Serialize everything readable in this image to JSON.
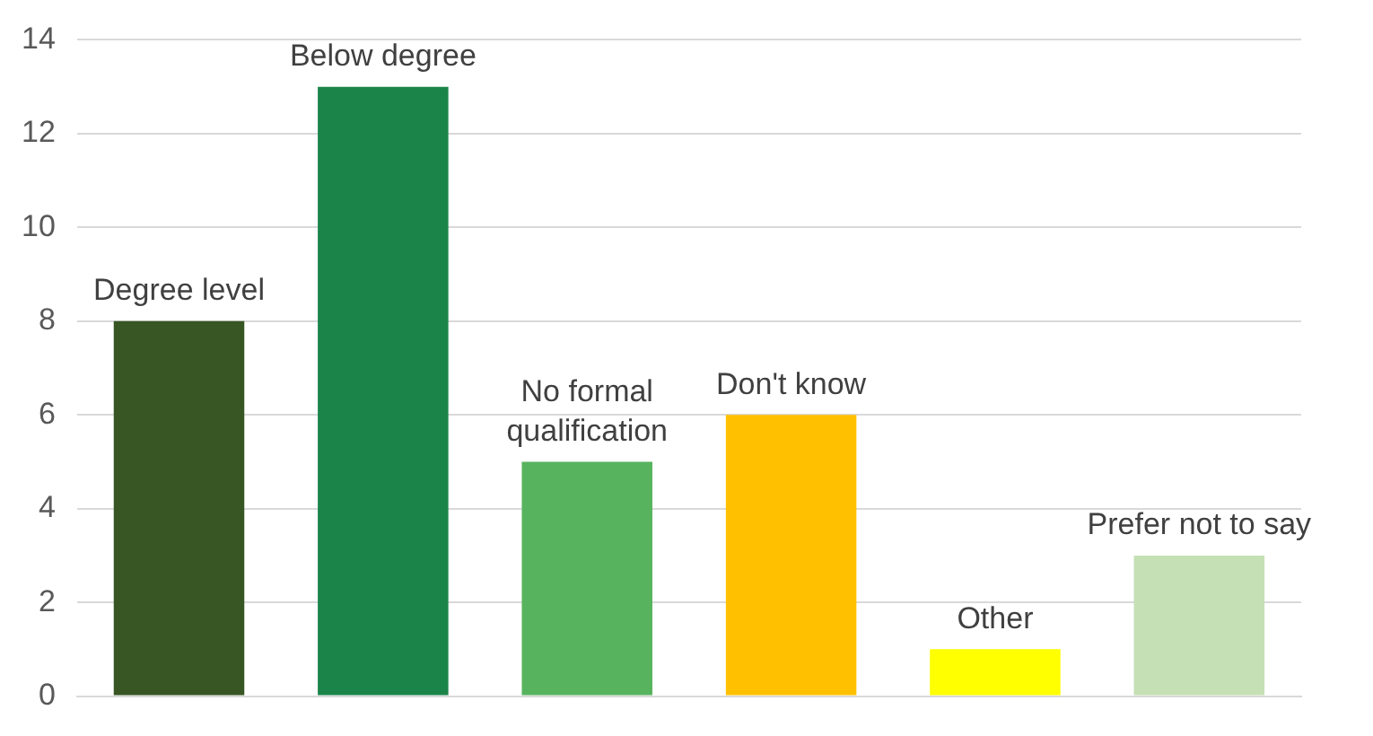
{
  "chart_data": {
    "type": "bar",
    "categories": [
      "Degree level",
      "Below degree",
      "No formal qualification",
      "Don't know",
      "Other",
      "Prefer not to say"
    ],
    "values": [
      8,
      13,
      5,
      6,
      1,
      3
    ],
    "colors": [
      "#375623",
      "#1b8449",
      "#57b35e",
      "#ffc000",
      "#ffff00",
      "#c5e0b4"
    ],
    "ylim": [
      0,
      14
    ],
    "yticks": [
      0,
      2,
      4,
      6,
      8,
      10,
      12,
      14
    ],
    "grid": "y",
    "legend": false,
    "tick_labels": "y"
  }
}
